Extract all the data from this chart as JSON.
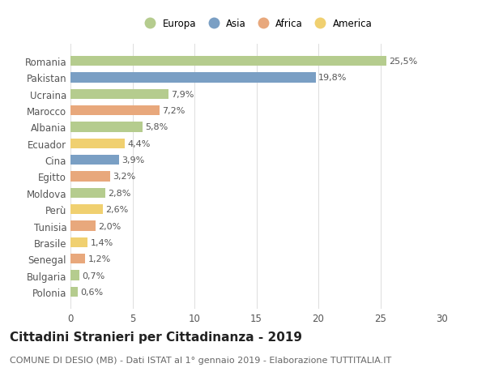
{
  "countries": [
    "Romania",
    "Pakistan",
    "Ucraina",
    "Marocco",
    "Albania",
    "Ecuador",
    "Cina",
    "Egitto",
    "Moldova",
    "Perù",
    "Tunisia",
    "Brasile",
    "Senegal",
    "Bulgaria",
    "Polonia"
  ],
  "values": [
    25.5,
    19.8,
    7.9,
    7.2,
    5.8,
    4.4,
    3.9,
    3.2,
    2.8,
    2.6,
    2.0,
    1.4,
    1.2,
    0.7,
    0.6
  ],
  "labels": [
    "25,5%",
    "19,8%",
    "7,9%",
    "7,2%",
    "5,8%",
    "4,4%",
    "3,9%",
    "3,2%",
    "2,8%",
    "2,6%",
    "2,0%",
    "1,4%",
    "1,2%",
    "0,7%",
    "0,6%"
  ],
  "colors": [
    "#b5cc8e",
    "#7a9fc4",
    "#b5cc8e",
    "#e8a87c",
    "#b5cc8e",
    "#f0d070",
    "#7a9fc4",
    "#e8a87c",
    "#b5cc8e",
    "#f0d070",
    "#e8a87c",
    "#f0d070",
    "#e8a87c",
    "#b5cc8e",
    "#b5cc8e"
  ],
  "legend_labels": [
    "Europa",
    "Asia",
    "Africa",
    "America"
  ],
  "legend_colors": [
    "#b5cc8e",
    "#7a9fc4",
    "#e8a87c",
    "#f0d070"
  ],
  "title": "Cittadini Stranieri per Cittadinanza - 2019",
  "subtitle": "COMUNE DI DESIO (MB) - Dati ISTAT al 1° gennaio 2019 - Elaborazione TUTTITALIA.IT",
  "xlim": [
    0,
    30
  ],
  "xticks": [
    0,
    5,
    10,
    15,
    20,
    25,
    30
  ],
  "background_color": "#ffffff",
  "bar_height": 0.6,
  "title_fontsize": 11,
  "subtitle_fontsize": 8,
  "label_fontsize": 8,
  "tick_fontsize": 8.5
}
